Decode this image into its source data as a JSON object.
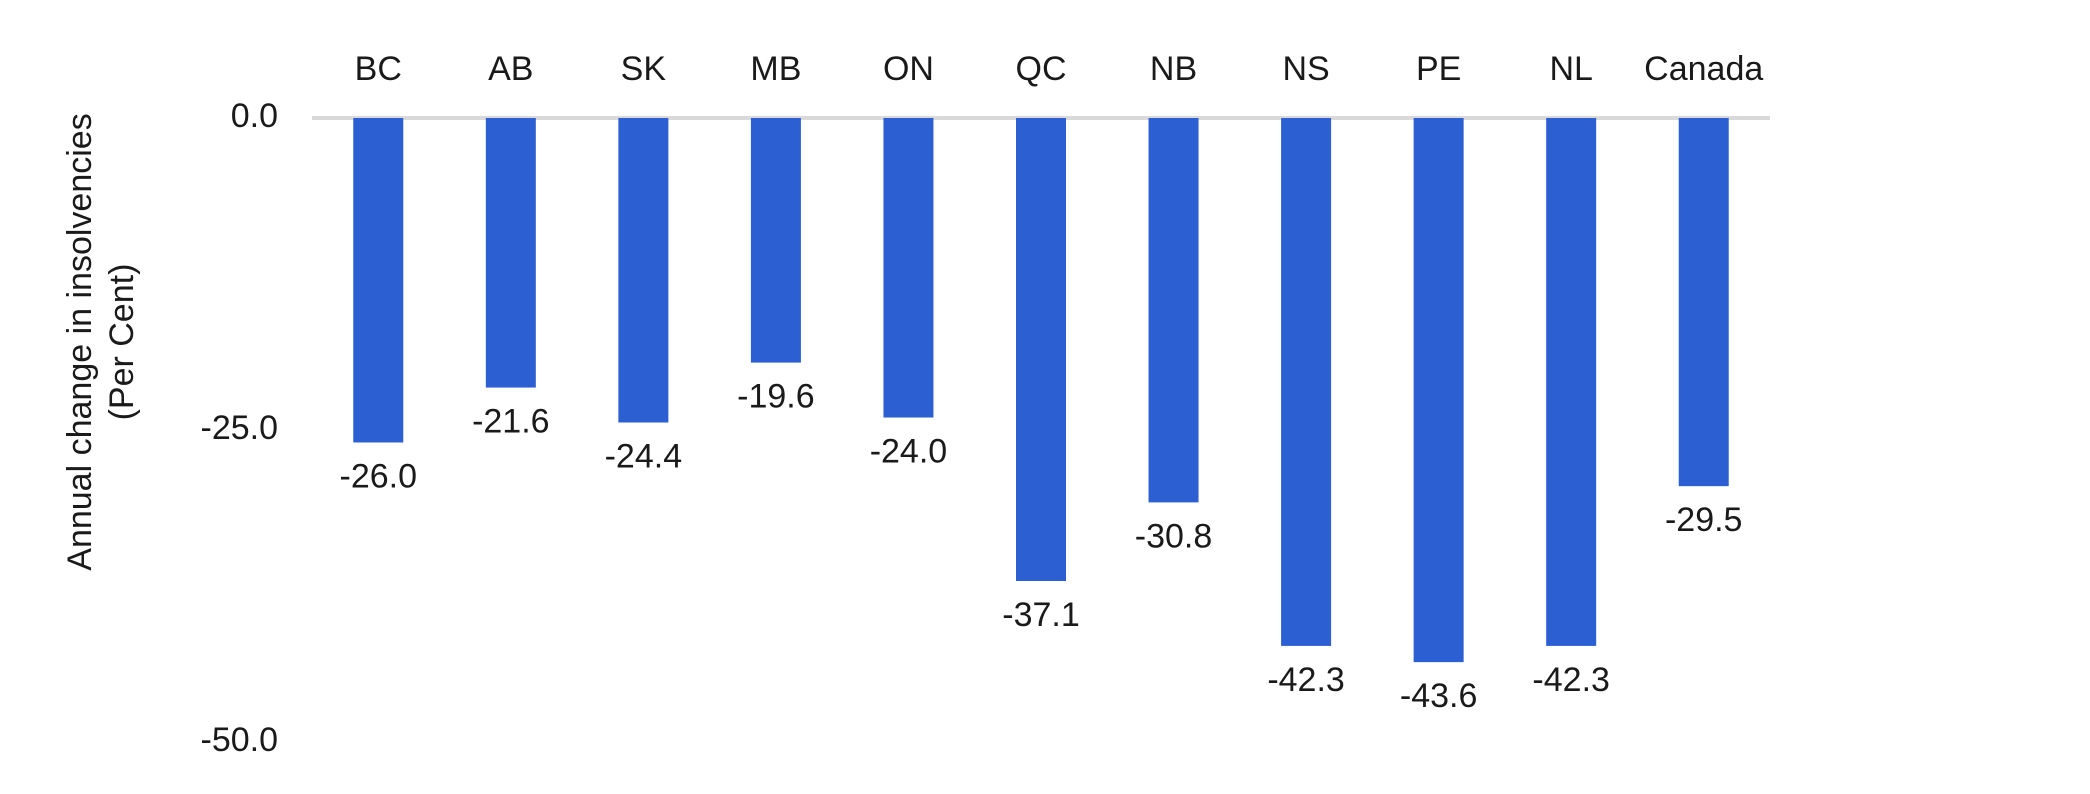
{
  "chart_data": {
    "type": "bar",
    "categories": [
      "BC",
      "AB",
      "SK",
      "MB",
      "ON",
      "QC",
      "NB",
      "NS",
      "PE",
      "NL",
      "Canada"
    ],
    "values": [
      -26.0,
      -21.6,
      -24.4,
      -19.6,
      -24.0,
      -37.1,
      -30.8,
      -42.3,
      -43.6,
      -42.3,
      -29.5
    ],
    "value_labels": [
      "-26.0",
      "-21.6",
      "-24.4",
      "-19.6",
      "-24.0",
      "-37.1",
      "-30.8",
      "-42.3",
      "-43.6",
      "-42.3",
      "-29.5"
    ],
    "title": "",
    "xlabel": "",
    "ylabel_lines": [
      "Annual change in insolvencies",
      "(Per Cent)"
    ],
    "yticks": [
      0,
      -25,
      -50
    ],
    "ytick_labels": [
      "0.0",
      "-25.0",
      "-50.0"
    ],
    "ylim": [
      -50,
      0
    ],
    "category_axis_position": "top",
    "grid": false,
    "legend": "none",
    "bar_color": "#2b5fd2",
    "zero_line_color": "#d9d9d9"
  }
}
